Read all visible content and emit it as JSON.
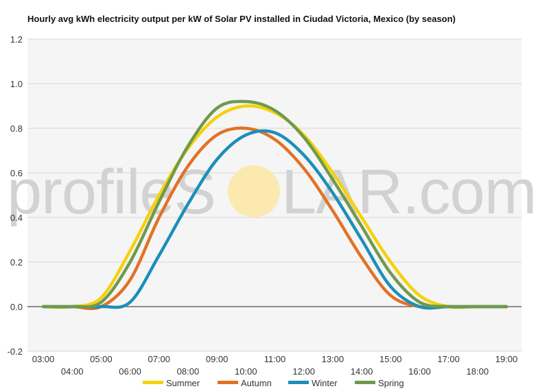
{
  "title": "Hourly avg kWh electricity output per kW of Solar PV installed in Ciudad Victoria, Mexico (by season)",
  "watermark": {
    "text_left": "profileS",
    "text_right": "LAR.com",
    "sun_color": "#fbe9b0"
  },
  "chart_data": {
    "type": "line",
    "title": "Hourly avg kWh electricity output per kW of Solar PV installed in Ciudad Victoria, Mexico (by season)",
    "xlabel": "",
    "ylabel": "",
    "grid": true,
    "legend_position": "bottom",
    "x": [
      "03:00",
      "04:00",
      "05:00",
      "06:00",
      "07:00",
      "08:00",
      "09:00",
      "10:00",
      "11:00",
      "12:00",
      "13:00",
      "14:00",
      "15:00",
      "16:00",
      "17:00",
      "18:00",
      "19:00"
    ],
    "x_tick_labels_top": [
      "03:00",
      "05:00",
      "07:00",
      "09:00",
      "11:00",
      "13:00",
      "15:00",
      "17:00",
      "19:00"
    ],
    "x_tick_labels_bottom": [
      "04:00",
      "06:00",
      "08:00",
      "10:00",
      "12:00",
      "14:00",
      "16:00",
      "18:00"
    ],
    "ylim": [
      -0.2,
      1.2
    ],
    "y_ticks": [
      "-0.2",
      "0.0",
      "0.2",
      "0.4",
      "0.6",
      "0.8",
      "1.0",
      "1.2"
    ],
    "y_tick_values": [
      -0.2,
      0.0,
      0.2,
      0.4,
      0.6,
      0.8,
      1.0,
      1.2
    ],
    "series": [
      {
        "name": "Summer",
        "color": "#f6d10c",
        "values": [
          0.0,
          0.0,
          0.04,
          0.25,
          0.5,
          0.71,
          0.85,
          0.9,
          0.87,
          0.77,
          0.6,
          0.4,
          0.2,
          0.05,
          0.0,
          0.0,
          0.0
        ]
      },
      {
        "name": "Autumn",
        "color": "#e27224",
        "values": [
          0.0,
          0.0,
          0.0,
          0.12,
          0.4,
          0.63,
          0.77,
          0.8,
          0.75,
          0.62,
          0.43,
          0.22,
          0.05,
          0.0,
          0.0,
          0.0,
          0.0
        ]
      },
      {
        "name": "Winter",
        "color": "#1c8fba",
        "values": [
          0.0,
          0.0,
          0.0,
          0.02,
          0.23,
          0.46,
          0.66,
          0.77,
          0.78,
          0.68,
          0.51,
          0.3,
          0.09,
          0.0,
          0.0,
          0.0,
          0.0
        ]
      },
      {
        "name": "Spring",
        "color": "#6f9a4c",
        "values": [
          0.0,
          0.0,
          0.02,
          0.2,
          0.47,
          0.72,
          0.89,
          0.92,
          0.88,
          0.76,
          0.57,
          0.36,
          0.15,
          0.02,
          0.0,
          0.0,
          0.0
        ]
      }
    ]
  }
}
